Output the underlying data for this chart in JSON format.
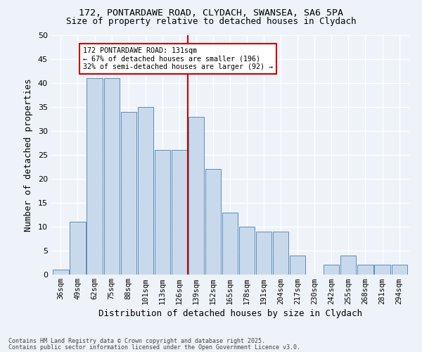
{
  "title1": "172, PONTARDAWE ROAD, CLYDACH, SWANSEA, SA6 5PA",
  "title2": "Size of property relative to detached houses in Clydach",
  "xlabel": "Distribution of detached houses by size in Clydach",
  "ylabel": "Number of detached properties",
  "categories": [
    "36sqm",
    "49sqm",
    "62sqm",
    "75sqm",
    "88sqm",
    "101sqm",
    "113sqm",
    "126sqm",
    "139sqm",
    "152sqm",
    "165sqm",
    "178sqm",
    "191sqm",
    "204sqm",
    "217sqm",
    "230sqm",
    "242sqm",
    "255sqm",
    "268sqm",
    "281sqm",
    "294sqm"
  ],
  "values": [
    1,
    11,
    41,
    41,
    34,
    35,
    26,
    26,
    33,
    22,
    13,
    10,
    9,
    9,
    4,
    0,
    2,
    4,
    2,
    2,
    2
  ],
  "bar_color": "#c9d9ec",
  "bar_edge_color": "#5b8db8",
  "vline_color": "#cc0000",
  "annotation_box_color": "#cc0000",
  "annotation_title": "172 PONTARDAWE ROAD: 131sqm",
  "annotation_line1": "← 67% of detached houses are smaller (196)",
  "annotation_line2": "32% of semi-detached houses are larger (92) →",
  "ylim": [
    0,
    50
  ],
  "yticks": [
    0,
    5,
    10,
    15,
    20,
    25,
    30,
    35,
    40,
    45,
    50
  ],
  "footer1": "Contains HM Land Registry data © Crown copyright and database right 2025.",
  "footer2": "Contains public sector information licensed under the Open Government Licence v3.0.",
  "bg_color": "#eef2f9",
  "grid_color": "#ffffff",
  "title_fontsize": 9,
  "label_fontsize": 8,
  "tick_fontsize": 7.5,
  "footer_fontsize": 6
}
